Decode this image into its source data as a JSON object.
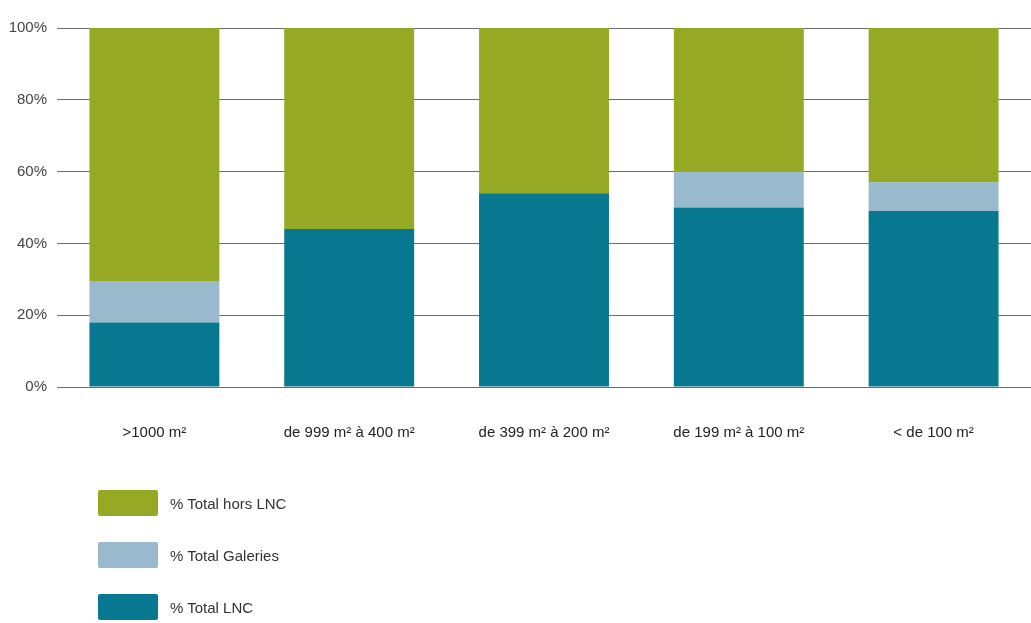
{
  "chart_data": {
    "type": "bar",
    "stacked": true,
    "categories": [
      ">1000 m²",
      "de 999 m² à 400 m²",
      "de 399 m² à 200 m²",
      "de 199 m² à 100 m²",
      "< de 100 m²"
    ],
    "series": [
      {
        "name": "% Total LNC",
        "color": "#087891",
        "values": [
          18,
          44,
          54,
          50,
          49
        ]
      },
      {
        "name": "% Total Galeries",
        "color": "#98bacc",
        "values": [
          11.5,
          0,
          0,
          10,
          8
        ]
      },
      {
        "name": "% Total hors LNC",
        "color": "#95a925",
        "values": [
          70.5,
          56,
          46,
          40,
          43
        ]
      }
    ],
    "ylim": [
      0,
      100
    ],
    "yticks": [
      {
        "value": 0,
        "label": "0%"
      },
      {
        "value": 20,
        "label": "20%"
      },
      {
        "value": 40,
        "label": "40%"
      },
      {
        "value": 60,
        "label": "60%"
      },
      {
        "value": 80,
        "label": "80%"
      },
      {
        "value": 100,
        "label": "100%"
      }
    ],
    "grid": "y",
    "legend": "bottom left"
  }
}
